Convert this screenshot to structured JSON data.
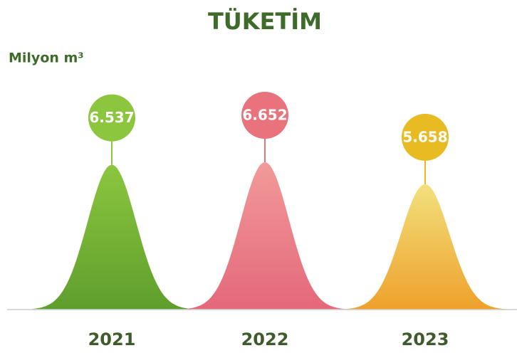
{
  "chart_data": {
    "type": "bell",
    "title": "TÜKETİM",
    "unit_label": "Milyon m³",
    "categories": [
      "2021",
      "2022",
      "2023"
    ],
    "values": [
      6.537,
      6.652,
      5.658
    ],
    "value_labels": [
      "6.537",
      "6.652",
      "5.658"
    ],
    "colors": [
      [
        "#8cc63f",
        "#5e9e2c"
      ],
      [
        "#f29a9a",
        "#e4687a"
      ],
      [
        "#f2e07c",
        "#eea12c"
      ]
    ],
    "marker_colors": [
      "#8cc63f",
      "#e8737d",
      "#e9bb22"
    ]
  }
}
